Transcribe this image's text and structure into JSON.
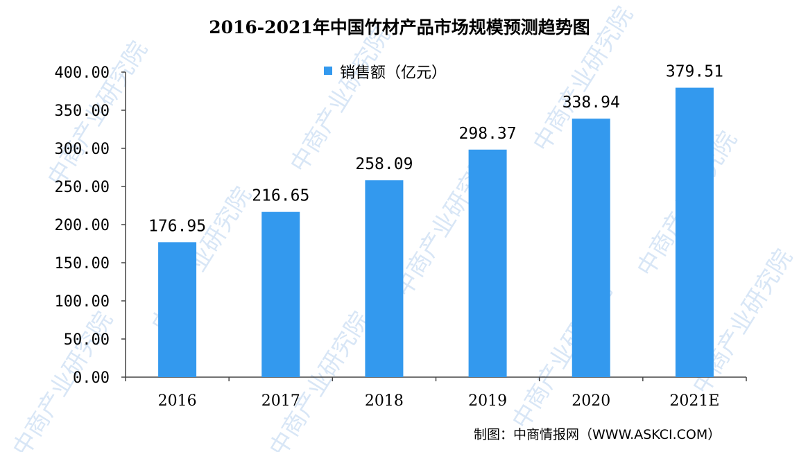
{
  "chart_data": {
    "type": "bar",
    "title": "2016-2021年中国竹材产品市场规模预测趋势图",
    "categories": [
      "2016",
      "2017",
      "2018",
      "2019",
      "2020",
      "2021E"
    ],
    "series": [
      {
        "name": "销售额（亿元）",
        "values": [
          176.95,
          216.65,
          258.09,
          298.37,
          338.94,
          379.51
        ],
        "labels": [
          "176.95",
          "216.65",
          "258.09",
          "298.37",
          "338.94",
          "379.51"
        ],
        "color": "#3399ee"
      }
    ],
    "ylim": [
      0,
      400
    ],
    "y_ticks": [
      0,
      50,
      100,
      150,
      200,
      250,
      300,
      350,
      400
    ],
    "y_tick_labels": [
      "0.00",
      "50.00",
      "100.00",
      "150.00",
      "200.00",
      "250.00",
      "300.00",
      "350.00",
      "400.00"
    ],
    "xlabel": "",
    "ylabel": "",
    "grid": false,
    "legend_position": "top-center"
  },
  "source": "制图：中商情报网（WWW.ASKCI.COM）",
  "watermark": "中商产业研究院"
}
